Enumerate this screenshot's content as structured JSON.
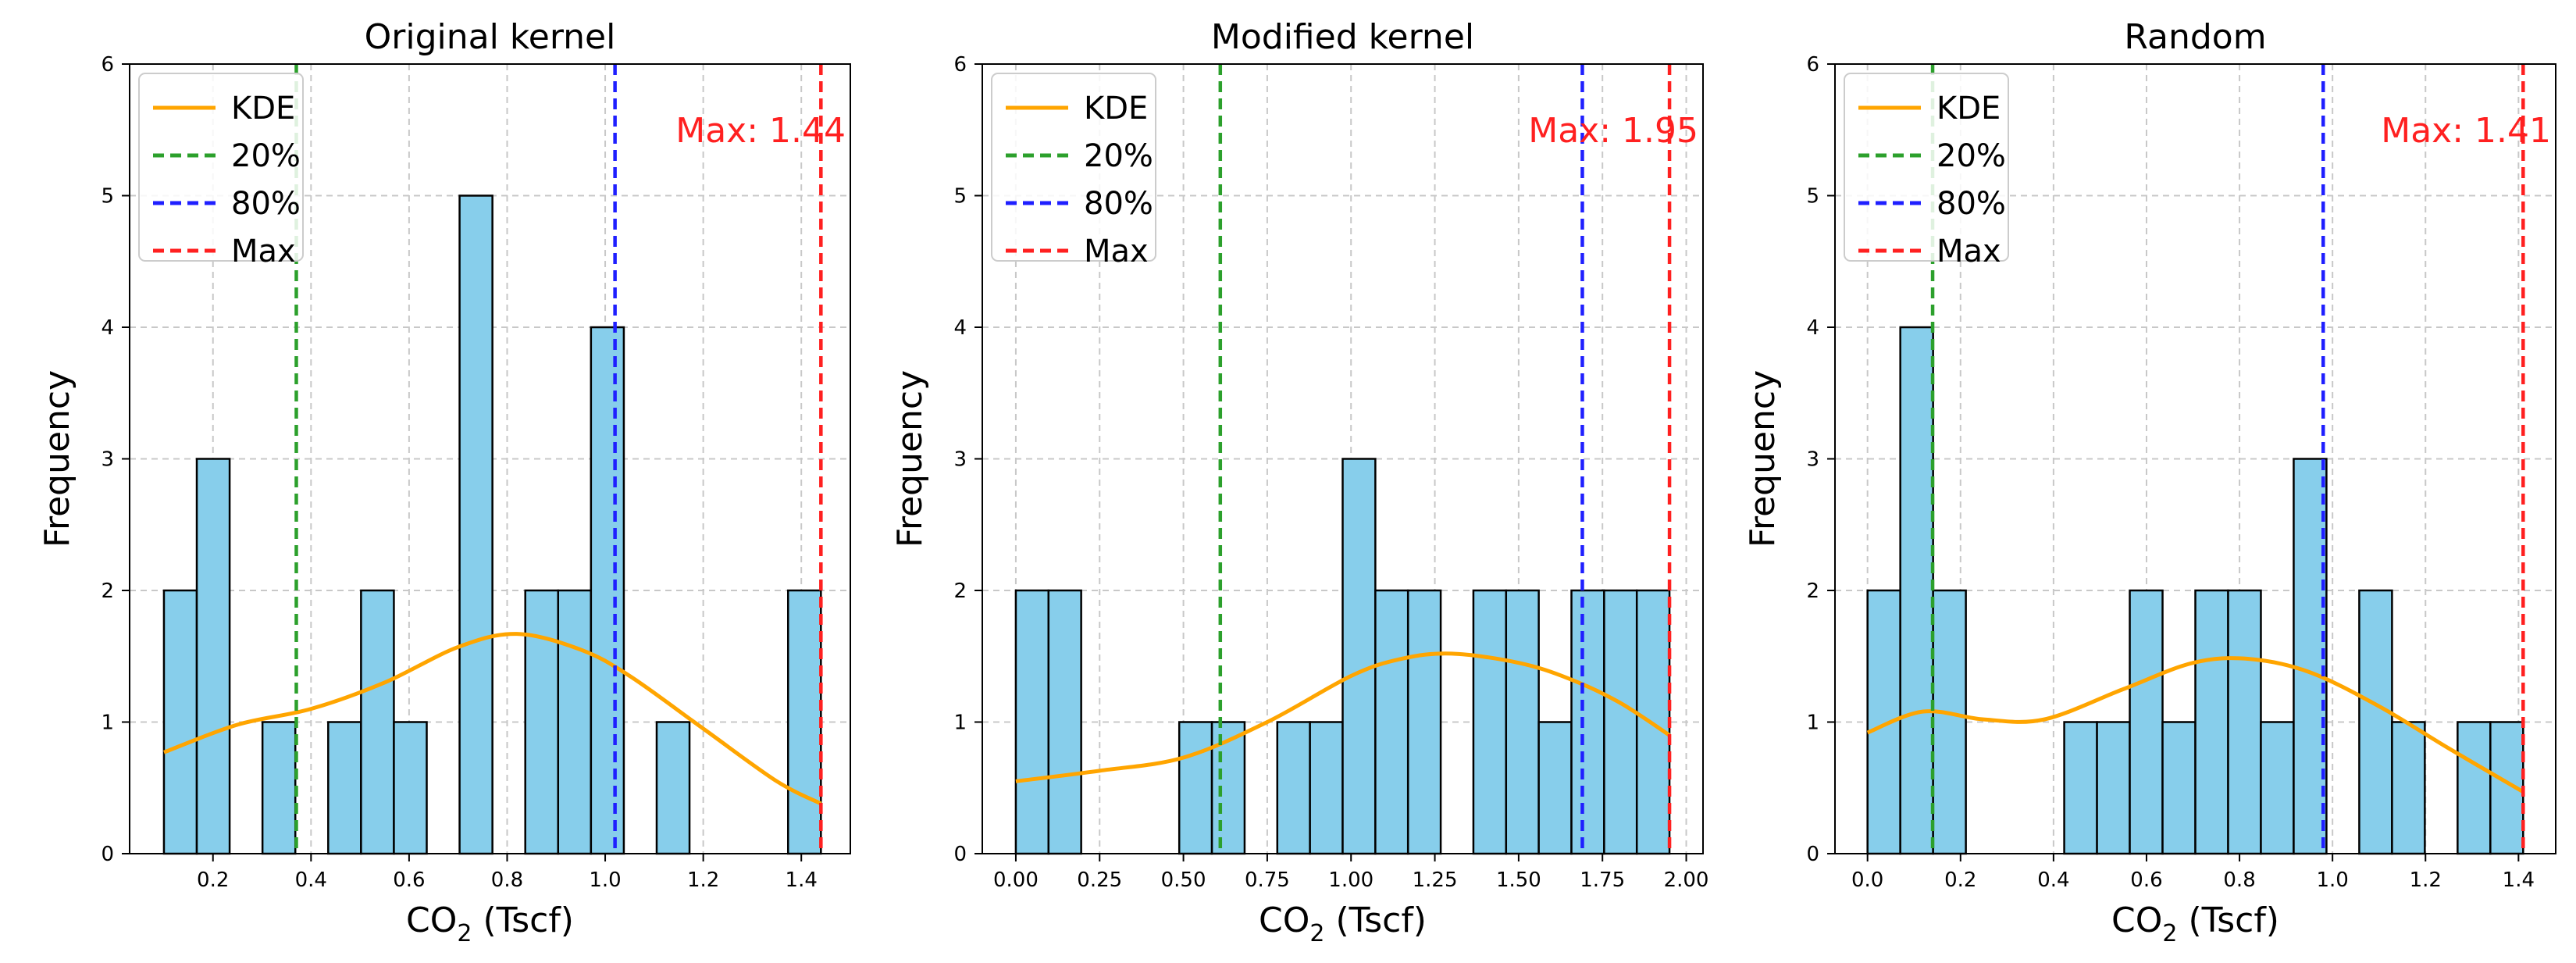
{
  "chart_data": [
    {
      "type": "bar",
      "title": "Original kernel",
      "xlabel": "CO",
      "xlabel_sub": "2",
      "xlabel_tail": " (Tscf)",
      "ylabel": "Frequency",
      "xlim": [
        0.03,
        1.5
      ],
      "ylim": [
        0,
        6
      ],
      "xticks": [
        0.2,
        0.4,
        0.6,
        0.8,
        1.0,
        1.2,
        1.4
      ],
      "xtick_labels": [
        "0.2",
        "0.4",
        "0.6",
        "0.8",
        "1.0",
        "1.2",
        "1.4"
      ],
      "yticks": [
        0,
        1,
        2,
        3,
        4,
        5,
        6
      ],
      "ytick_labels": [
        "0",
        "1",
        "2",
        "3",
        "4",
        "5",
        "6"
      ],
      "bin_edges": [
        0.1,
        0.167,
        0.234,
        0.301,
        0.368,
        0.435,
        0.502,
        0.569,
        0.636,
        0.703,
        0.77,
        0.837,
        0.904,
        0.971,
        1.038,
        1.105,
        1.172,
        1.239,
        1.306,
        1.373,
        1.44
      ],
      "values": [
        2,
        3,
        0,
        1,
        0,
        1,
        2,
        1,
        0,
        5,
        0,
        2,
        2,
        4,
        0,
        1,
        0,
        0,
        0,
        2
      ],
      "kde": [
        [
          0.1,
          0.77
        ],
        [
          0.25,
          0.98
        ],
        [
          0.4,
          1.1
        ],
        [
          0.55,
          1.3
        ],
        [
          0.7,
          1.57
        ],
        [
          0.82,
          1.67
        ],
        [
          0.95,
          1.55
        ],
        [
          1.05,
          1.35
        ],
        [
          1.2,
          0.95
        ],
        [
          1.35,
          0.55
        ],
        [
          1.44,
          0.38
        ]
      ],
      "p20": 0.37,
      "p80": 1.02,
      "max": 1.44,
      "max_label": "Max: 1.44",
      "legend": [
        "KDE",
        "20%",
        "80%",
        "Max"
      ]
    },
    {
      "type": "bar",
      "title": "Modified kernel",
      "xlabel": "CO",
      "xlabel_sub": "2",
      "xlabel_tail": " (Tscf)",
      "ylabel": "Frequency",
      "xlim": [
        -0.1,
        2.05
      ],
      "ylim": [
        0,
        6
      ],
      "xticks": [
        0.0,
        0.25,
        0.5,
        0.75,
        1.0,
        1.25,
        1.5,
        1.75,
        2.0
      ],
      "xtick_labels": [
        "0.00",
        "0.25",
        "0.50",
        "0.75",
        "1.00",
        "1.25",
        "1.50",
        "1.75",
        "2.00"
      ],
      "yticks": [
        0,
        1,
        2,
        3,
        4,
        5,
        6
      ],
      "ytick_labels": [
        "0",
        "1",
        "2",
        "3",
        "4",
        "5",
        "6"
      ],
      "bin_edges": [
        0.0,
        0.0975,
        0.195,
        0.2925,
        0.39,
        0.4875,
        0.585,
        0.6825,
        0.78,
        0.8775,
        0.975,
        1.0725,
        1.17,
        1.2675,
        1.365,
        1.4625,
        1.56,
        1.6575,
        1.755,
        1.8525,
        1.95
      ],
      "values": [
        2,
        2,
        0,
        0,
        0,
        1,
        1,
        0,
        1,
        1,
        3,
        2,
        2,
        0,
        2,
        2,
        1,
        2,
        2,
        2
      ],
      "kde": [
        [
          0.0,
          0.55
        ],
        [
          0.25,
          0.63
        ],
        [
          0.5,
          0.73
        ],
        [
          0.75,
          1.0
        ],
        [
          1.0,
          1.35
        ],
        [
          1.15,
          1.48
        ],
        [
          1.3,
          1.52
        ],
        [
          1.5,
          1.45
        ],
        [
          1.65,
          1.33
        ],
        [
          1.8,
          1.15
        ],
        [
          1.95,
          0.9
        ]
      ],
      "p20": 0.61,
      "p80": 1.69,
      "max": 1.95,
      "max_label": "Max: 1.95",
      "legend": [
        "KDE",
        "20%",
        "80%",
        "Max"
      ]
    },
    {
      "type": "bar",
      "title": "Random",
      "xlabel": "CO",
      "xlabel_sub": "2",
      "xlabel_tail": " (Tscf)",
      "ylabel": "Frequency",
      "xlim": [
        -0.07,
        1.48
      ],
      "ylim": [
        0,
        6
      ],
      "xticks": [
        0.0,
        0.2,
        0.4,
        0.6,
        0.8,
        1.0,
        1.2,
        1.4
      ],
      "xtick_labels": [
        "0.0",
        "0.2",
        "0.4",
        "0.6",
        "0.8",
        "1.0",
        "1.2",
        "1.4"
      ],
      "yticks": [
        0,
        1,
        2,
        3,
        4,
        5,
        6
      ],
      "ytick_labels": [
        "0",
        "1",
        "2",
        "3",
        "4",
        "5",
        "6"
      ],
      "bin_edges": [
        0.0,
        0.0705,
        0.141,
        0.2115,
        0.282,
        0.3525,
        0.423,
        0.4935,
        0.564,
        0.6345,
        0.705,
        0.7755,
        0.846,
        0.9165,
        0.987,
        1.0575,
        1.128,
        1.1985,
        1.269,
        1.3395,
        1.41
      ],
      "values": [
        2,
        4,
        2,
        0,
        0,
        0,
        1,
        1,
        2,
        1,
        2,
        2,
        1,
        3,
        0,
        2,
        1,
        0,
        1,
        1
      ],
      "kde": [
        [
          0.0,
          0.92
        ],
        [
          0.12,
          1.08
        ],
        [
          0.25,
          1.02
        ],
        [
          0.38,
          1.02
        ],
        [
          0.55,
          1.25
        ],
        [
          0.7,
          1.45
        ],
        [
          0.82,
          1.48
        ],
        [
          0.95,
          1.38
        ],
        [
          1.1,
          1.12
        ],
        [
          1.25,
          0.8
        ],
        [
          1.41,
          0.47
        ]
      ],
      "p20": 0.14,
      "p80": 0.98,
      "max": 1.41,
      "max_label": "Max: 1.41",
      "legend": [
        "KDE",
        "20%",
        "80%",
        "Max"
      ]
    }
  ],
  "colors": {
    "bar_fill": "#87ceeb",
    "bar_edge": "#000000",
    "kde": "#ffa500",
    "p20": "#2ca02c",
    "p80": "#1f1fff",
    "max": "#ff2020",
    "grid": "#c8c8c8"
  }
}
